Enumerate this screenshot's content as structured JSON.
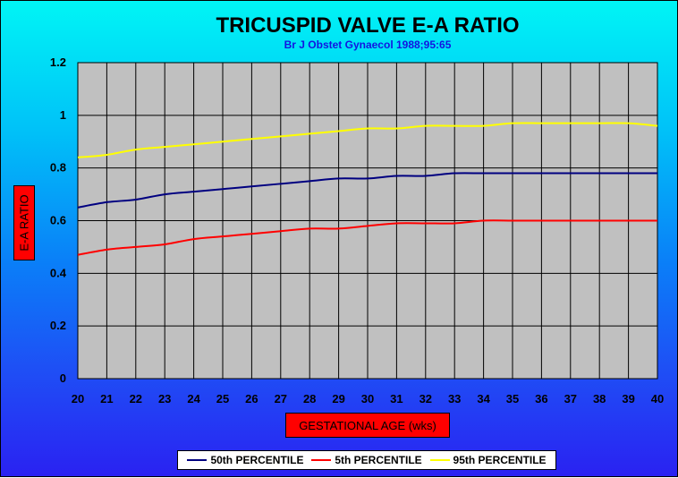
{
  "chart_data": {
    "type": "line",
    "title": "TRICUSPID VALVE E-A RATIO",
    "subtitle": "Br J Obstet Gynaecol 1988;95:65",
    "xlabel": "GESTATIONAL AGE (wks)",
    "ylabel": "E-A RATIO",
    "x": [
      20,
      21,
      22,
      23,
      24,
      25,
      26,
      27,
      28,
      29,
      30,
      31,
      32,
      33,
      34,
      35,
      36,
      37,
      38,
      39,
      40
    ],
    "xlim": [
      20,
      40
    ],
    "ylim": [
      0,
      1.2
    ],
    "yticks": [
      "0",
      "0.2",
      "0.4",
      "0.6",
      "0.8",
      "1",
      "1.2"
    ],
    "grid": true,
    "legend_position": "bottom",
    "series": [
      {
        "name": "50th PERCENTILE",
        "color": "#000080",
        "values": [
          0.65,
          0.67,
          0.68,
          0.7,
          0.71,
          0.72,
          0.73,
          0.74,
          0.75,
          0.76,
          0.76,
          0.77,
          0.77,
          0.78,
          0.78,
          0.78,
          0.78,
          0.78,
          0.78,
          0.78,
          0.78
        ]
      },
      {
        "name": "5th PERCENTILE",
        "color": "#ff0000",
        "values": [
          0.47,
          0.49,
          0.5,
          0.51,
          0.53,
          0.54,
          0.55,
          0.56,
          0.57,
          0.57,
          0.58,
          0.59,
          0.59,
          0.59,
          0.6,
          0.6,
          0.6,
          0.6,
          0.6,
          0.6,
          0.6
        ]
      },
      {
        "name": "95th PERCENTILE",
        "color": "#ffff00",
        "values": [
          0.84,
          0.85,
          0.87,
          0.88,
          0.89,
          0.9,
          0.91,
          0.92,
          0.93,
          0.94,
          0.95,
          0.95,
          0.96,
          0.96,
          0.96,
          0.97,
          0.97,
          0.97,
          0.97,
          0.97,
          0.96
        ]
      }
    ]
  },
  "colors": {
    "plot_background": "#c0c0c0",
    "grid": "#000000",
    "label_box": "#ff0000",
    "legend_background": "#ffffff"
  }
}
